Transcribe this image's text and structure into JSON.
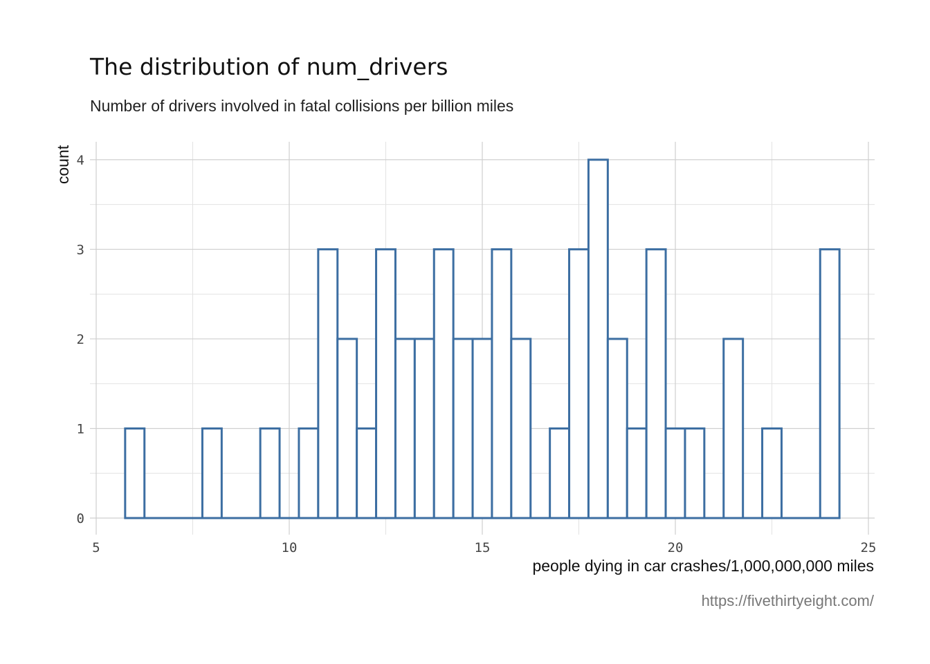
{
  "chart_data": {
    "type": "bar",
    "title": "The distribution of num_drivers",
    "subtitle": "Number of drivers involved in fatal collisions per billion miles",
    "xlabel": "people dying in car crashes/1,000,000,000 miles",
    "ylabel": "count",
    "caption": "https://fivethirtyeight.com/",
    "xlim": [
      5,
      25
    ],
    "ylim": [
      0,
      4
    ],
    "x_ticks": [
      "5",
      "10",
      "15",
      "20",
      "25"
    ],
    "y_ticks": [
      "0",
      "1",
      "2",
      "3",
      "4"
    ],
    "x_tick_values": [
      5,
      10,
      15,
      20,
      25
    ],
    "y_tick_values": [
      0,
      1,
      2,
      3,
      4
    ],
    "grid": true,
    "bin_width": 0.5,
    "bin_centers": [
      6.0,
      6.5,
      7.0,
      7.5,
      8.0,
      8.5,
      9.0,
      9.5,
      10.0,
      10.5,
      11.0,
      11.5,
      12.0,
      12.5,
      13.0,
      13.5,
      14.0,
      14.5,
      15.0,
      15.5,
      16.0,
      16.5,
      17.0,
      17.5,
      18.0,
      18.5,
      19.0,
      19.5,
      20.0,
      20.5,
      21.0,
      21.5,
      22.0,
      22.5,
      23.0,
      23.5,
      24.0
    ],
    "counts": [
      1,
      0,
      0,
      0,
      1,
      0,
      0,
      1,
      0,
      1,
      3,
      2,
      1,
      3,
      2,
      2,
      3,
      2,
      2,
      3,
      2,
      0,
      1,
      3,
      4,
      2,
      1,
      3,
      1,
      1,
      0,
      2,
      0,
      1,
      0,
      0,
      3
    ],
    "colors": {
      "outline": "#3c6ea2",
      "fill": "#ffffff"
    }
  }
}
